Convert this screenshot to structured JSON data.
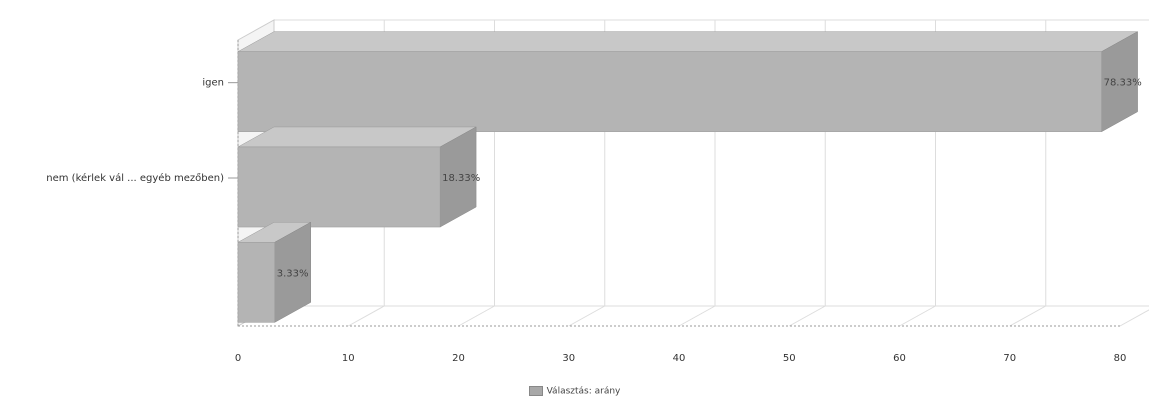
{
  "chart_data": {
    "type": "bar",
    "orientation": "horizontal",
    "three_d": true,
    "categories": [
      "igen",
      "nem (kérlek vál ... egyéb mezőben)",
      ""
    ],
    "series": [
      {
        "name": "Választás: arány",
        "values": [
          78.33,
          18.33,
          3.33
        ]
      }
    ],
    "data_labels": [
      "78.33%",
      "18.33%",
      "3.33%"
    ],
    "x_ticks": [
      "0",
      "10",
      "20",
      "30",
      "40",
      "50",
      "60",
      "70",
      "80"
    ],
    "xlim": [
      0,
      80
    ],
    "grid": true,
    "legend_position": "bottom-center",
    "colors": {
      "bar_front": "#b4b4b4",
      "bar_top": "#c8c8c8",
      "bar_side": "#9a9a9a",
      "grid": "#dddddd"
    }
  }
}
